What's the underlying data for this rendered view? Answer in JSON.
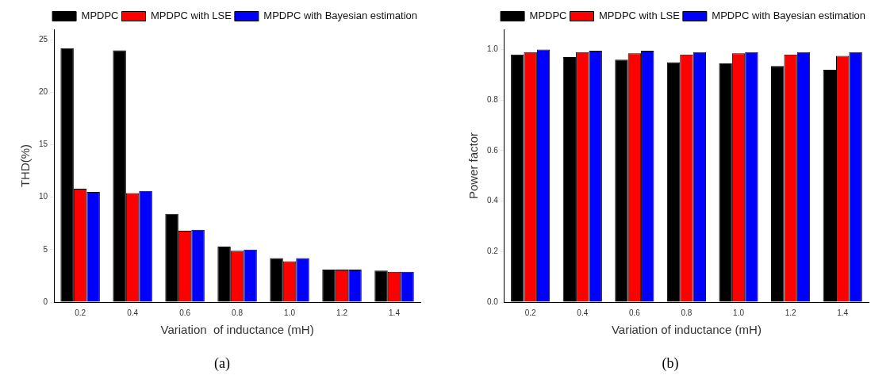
{
  "chart_data": [
    {
      "type": "bar",
      "categories": [
        "0.2",
        "0.4",
        "0.6",
        "0.8",
        "1.0",
        "1.2",
        "1.4"
      ],
      "xlabel": "Variation  of inductance (mH)",
      "ylabel": "THD(%)",
      "series": [
        {
          "name": "MPDPC",
          "color": "#000000",
          "values": [
            24.2,
            24.0,
            8.4,
            5.3,
            4.2,
            3.1,
            3.0
          ]
        },
        {
          "name": "MPDPC with LSE",
          "color": "#ff0000",
          "values": [
            10.8,
            10.4,
            6.8,
            4.9,
            3.9,
            3.1,
            2.9
          ]
        },
        {
          "name": "MPDPC with Bayesian estimation",
          "color": "#0000ff",
          "values": [
            10.5,
            10.6,
            6.9,
            5.0,
            4.2,
            3.1,
            2.9
          ]
        }
      ],
      "ylim": [
        0,
        26
      ],
      "yticks": [
        0,
        5,
        10,
        15,
        20,
        25
      ],
      "legend": "top right",
      "annotations": [
        "(a)"
      ]
    },
    {
      "type": "bar",
      "categories": [
        "0.2",
        "0.4",
        "0.6",
        "0.8",
        "1.0",
        "1.2",
        "1.4"
      ],
      "xlabel": "Variation of inductance (mH)",
      "ylabel": "Power factor",
      "series": [
        {
          "name": "MPDPC",
          "color": "#000000",
          "values": [
            0.98,
            0.97,
            0.96,
            0.95,
            0.945,
            0.935,
            0.92
          ]
        },
        {
          "name": "MPDPC with LSE",
          "color": "#ff0000",
          "values": [
            0.99,
            0.99,
            0.985,
            0.98,
            0.985,
            0.98,
            0.975
          ]
        },
        {
          "name": "MPDPC with Bayesian estimation",
          "color": "#0000ff",
          "values": [
            1.0,
            0.995,
            0.995,
            0.99,
            0.99,
            0.99,
            0.99
          ]
        }
      ],
      "ylim": [
        0,
        1.08
      ],
      "yticks": [
        {
          "value": 0,
          "label": "0.0"
        },
        0.2,
        0.4,
        0.6,
        0.8,
        {
          "value": 1,
          "label": "1.0"
        }
      ],
      "legend": "top right",
      "annotations": [
        "(b)"
      ]
    }
  ]
}
